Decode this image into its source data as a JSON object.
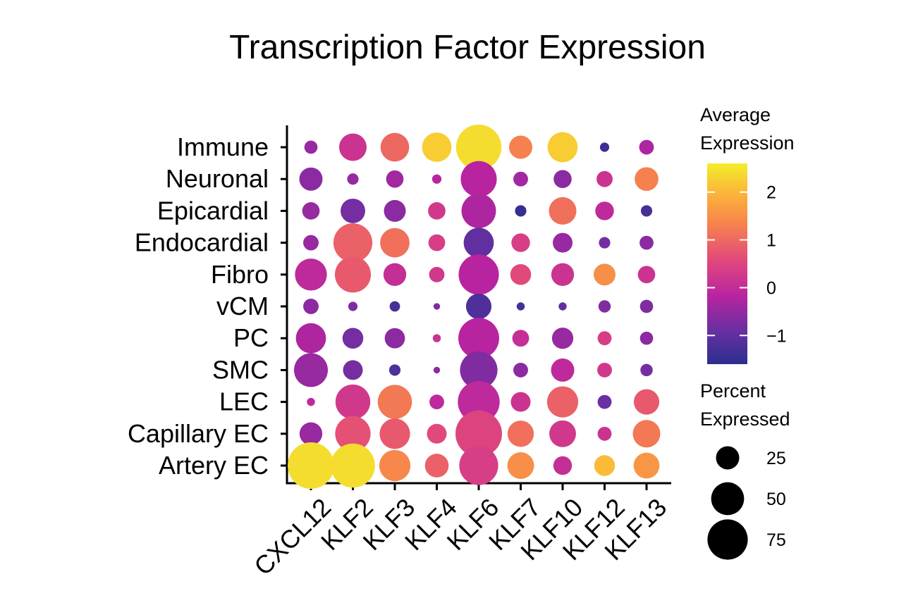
{
  "chart_data": {
    "type": "dot_plot",
    "title": "Transcription Factor Expression",
    "xlabel": "",
    "ylabel": "",
    "genes": [
      "CXCL12",
      "KLF2",
      "KLF3",
      "KLF4",
      "KLF6",
      "KLF7",
      "KLF10",
      "KLF12",
      "KLF13"
    ],
    "cell_types": [
      "Immune",
      "Neuronal",
      "Epicardial",
      "Endocardial",
      "Fibro",
      "vCM",
      "PC",
      "SMC",
      "LEC",
      "Capillary EC",
      "Artery EC"
    ],
    "color_legend": {
      "title": [
        "Average",
        "Expression"
      ],
      "range": [
        -1.6,
        2.6
      ],
      "ticks": [
        2,
        1,
        0,
        -1
      ],
      "tick_labels": [
        "2",
        "1",
        "0",
        "−1"
      ],
      "colors": [
        "#2b2f8f",
        "#6a2fa2",
        "#b824a0",
        "#e2497b",
        "#f6804e",
        "#fbb43a",
        "#f2ee2a"
      ]
    },
    "size_legend": {
      "title": [
        "Percent",
        "Expressed"
      ],
      "values": [
        25,
        50,
        75
      ],
      "labels": [
        "25",
        "50",
        "75"
      ]
    },
    "points": [
      {
        "cell": "Immune",
        "values": [
          [
            -0.5,
            8
          ],
          [
            0.1,
            35
          ],
          [
            0.9,
            38
          ],
          [
            2.2,
            40
          ],
          [
            2.4,
            95
          ],
          [
            1.2,
            25
          ],
          [
            2.2,
            42
          ],
          [
            -1.4,
            4
          ],
          [
            -0.3,
            10
          ]
        ]
      },
      {
        "cell": "Neuronal",
        "values": [
          [
            -0.6,
            25
          ],
          [
            -0.5,
            6
          ],
          [
            -0.4,
            14
          ],
          [
            -0.2,
            4
          ],
          [
            -0.2,
            60
          ],
          [
            -0.4,
            10
          ],
          [
            -0.6,
            15
          ],
          [
            0.1,
            12
          ],
          [
            1.2,
            26
          ]
        ]
      },
      {
        "cell": "Epicardial",
        "values": [
          [
            -0.5,
            14
          ],
          [
            -0.8,
            28
          ],
          [
            -0.6,
            22
          ],
          [
            0.2,
            14
          ],
          [
            -0.3,
            55
          ],
          [
            -1.5,
            6
          ],
          [
            1.0,
            35
          ],
          [
            -0.1,
            16
          ],
          [
            -1.3,
            6
          ]
        ]
      },
      {
        "cell": "Endocardial",
        "values": [
          [
            -0.5,
            11
          ],
          [
            0.8,
            70
          ],
          [
            1.0,
            40
          ],
          [
            0.3,
            13
          ],
          [
            -1.0,
            42
          ],
          [
            0.3,
            16
          ],
          [
            -0.5,
            18
          ],
          [
            -0.8,
            6
          ],
          [
            -0.6,
            9
          ]
        ]
      },
      {
        "cell": "Fibro",
        "values": [
          [
            -0.1,
            47
          ],
          [
            0.7,
            60
          ],
          [
            0.0,
            24
          ],
          [
            0.2,
            11
          ],
          [
            -0.2,
            75
          ],
          [
            0.5,
            20
          ],
          [
            0.1,
            24
          ],
          [
            1.4,
            22
          ],
          [
            0.1,
            14
          ]
        ]
      },
      {
        "cell": "vCM",
        "values": [
          [
            -0.6,
            11
          ],
          [
            -0.7,
            4
          ],
          [
            -1.3,
            5
          ],
          [
            -0.7,
            2
          ],
          [
            -1.2,
            30
          ],
          [
            -1.3,
            3
          ],
          [
            -1.0,
            3
          ],
          [
            -0.7,
            7
          ],
          [
            -0.7,
            8
          ]
        ]
      },
      {
        "cell": "PC",
        "values": [
          [
            -0.3,
            42
          ],
          [
            -0.8,
            20
          ],
          [
            -0.6,
            19
          ],
          [
            0.1,
            3
          ],
          [
            -0.2,
            77
          ],
          [
            0.0,
            13
          ],
          [
            -0.5,
            21
          ],
          [
            0.3,
            9
          ],
          [
            -0.6,
            8
          ]
        ]
      },
      {
        "cell": "SMC",
        "values": [
          [
            -0.5,
            53
          ],
          [
            -0.8,
            18
          ],
          [
            -1.2,
            6
          ],
          [
            -0.6,
            2
          ],
          [
            -0.7,
            65
          ],
          [
            -0.6,
            10
          ],
          [
            -0.1,
            25
          ],
          [
            0.2,
            10
          ],
          [
            -0.8,
            7
          ]
        ]
      },
      {
        "cell": "LEC",
        "values": [
          [
            -0.1,
            3
          ],
          [
            0.2,
            56
          ],
          [
            1.1,
            54
          ],
          [
            -0.1,
            10
          ],
          [
            -0.1,
            81
          ],
          [
            0.1,
            18
          ],
          [
            0.8,
            45
          ],
          [
            -0.9,
            9
          ],
          [
            0.7,
            30
          ]
        ]
      },
      {
        "cell": "Capillary EC",
        "values": [
          [
            -0.5,
            24
          ],
          [
            0.6,
            58
          ],
          [
            0.7,
            43
          ],
          [
            0.5,
            18
          ],
          [
            0.4,
            100
          ],
          [
            1.0,
            32
          ],
          [
            0.2,
            33
          ],
          [
            0.1,
            9
          ],
          [
            1.1,
            35
          ]
        ]
      },
      {
        "cell": "Artery EC",
        "values": [
          [
            2.4,
            100
          ],
          [
            2.4,
            90
          ],
          [
            1.3,
            45
          ],
          [
            0.8,
            26
          ],
          [
            0.3,
            70
          ],
          [
            1.4,
            33
          ],
          [
            0.0,
            16
          ],
          [
            2.0,
            20
          ],
          [
            1.5,
            31
          ]
        ]
      }
    ]
  }
}
